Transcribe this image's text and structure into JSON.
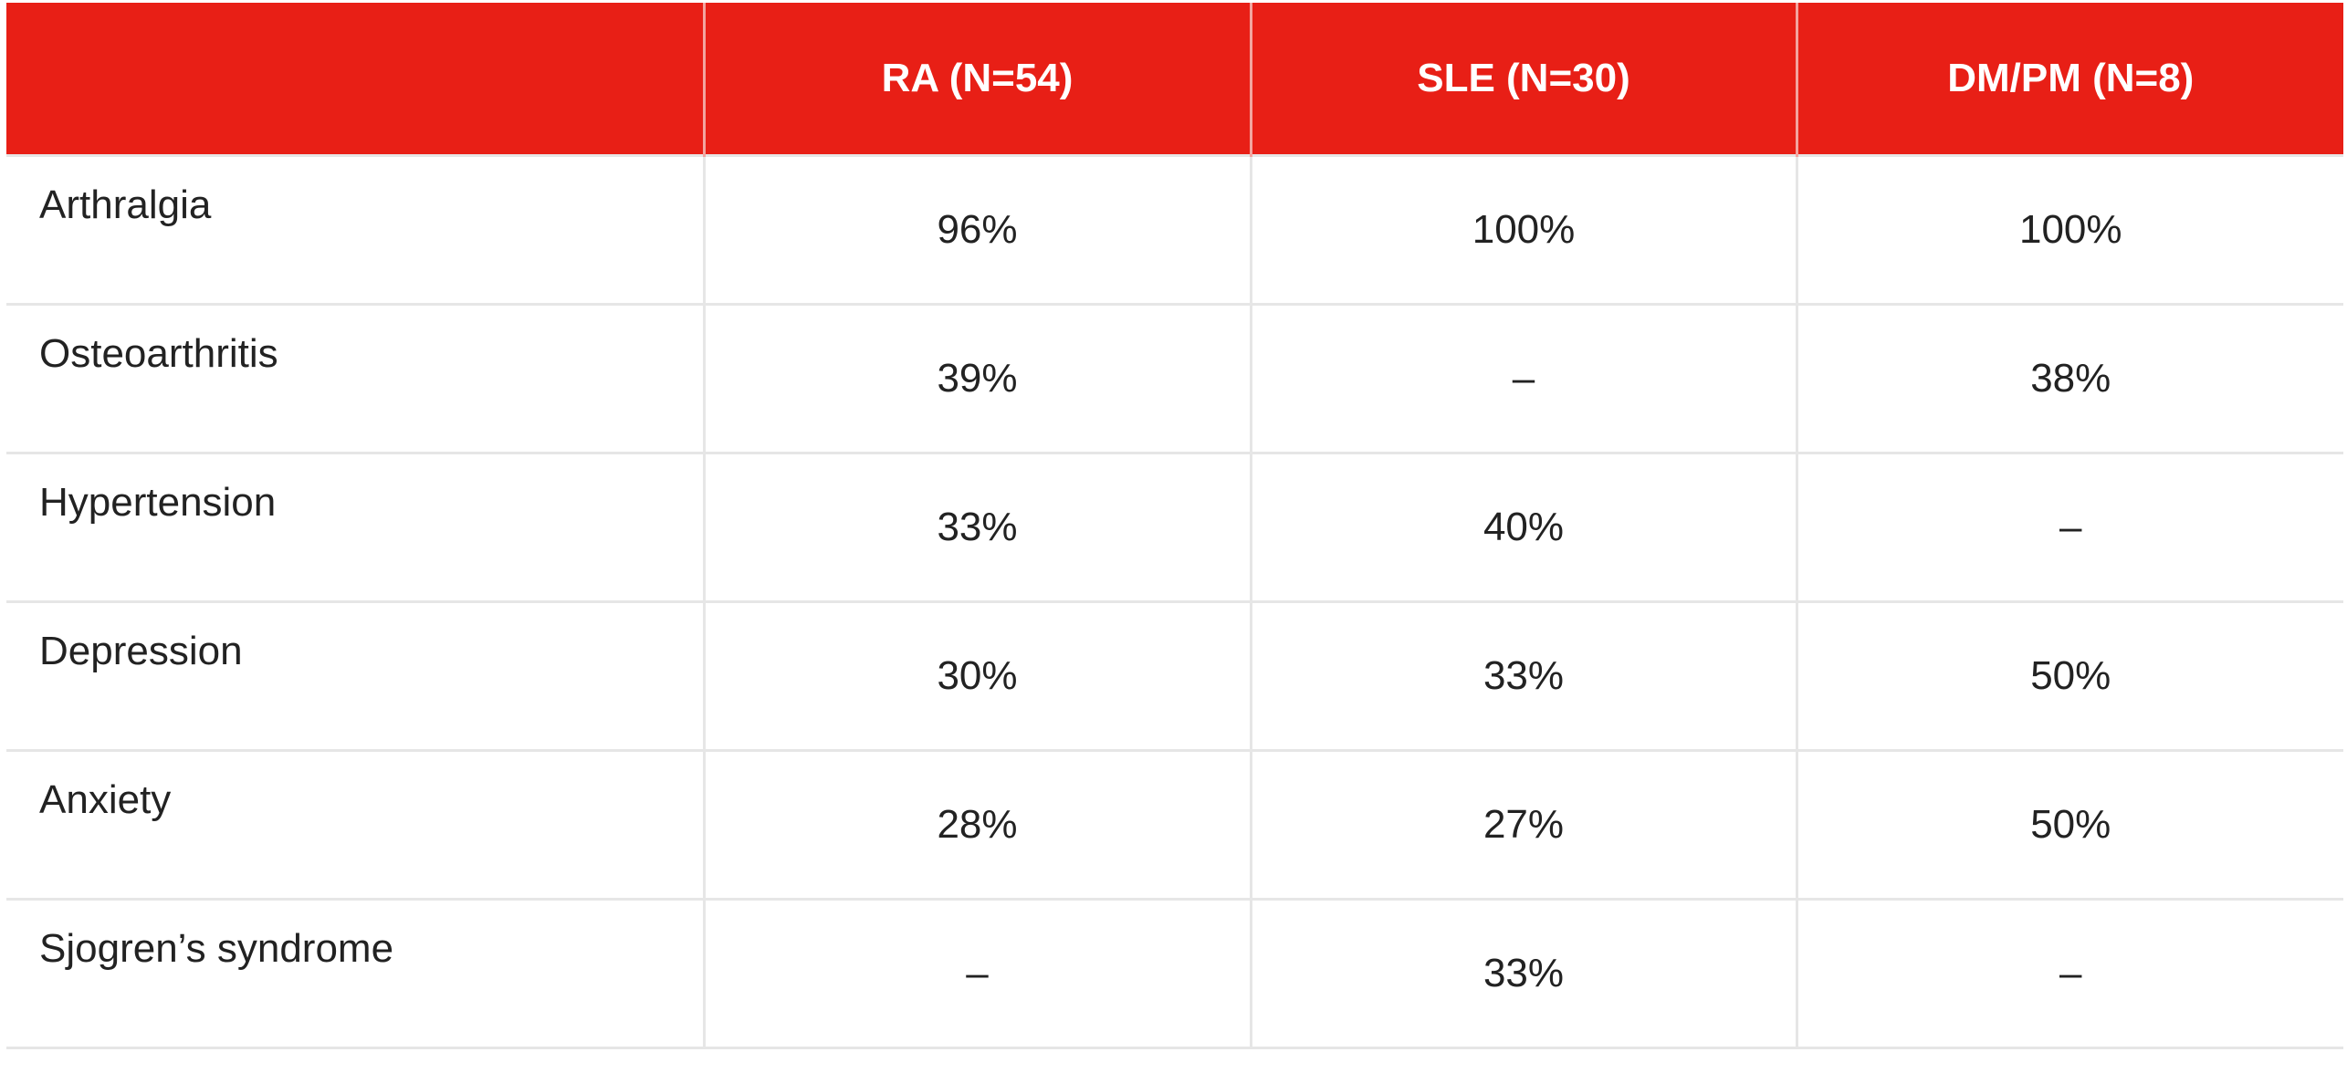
{
  "table": {
    "columns": [
      "",
      "RA (N=54)",
      "SLE (N=30)",
      "DM/PM (N=8)"
    ],
    "rows": [
      {
        "label": "Arthralgia",
        "values": [
          "96%",
          "100%",
          "100%"
        ]
      },
      {
        "label": "Osteoarthritis",
        "values": [
          "39%",
          "–",
          "38%"
        ]
      },
      {
        "label": "Hypertension",
        "values": [
          "33%",
          "40%",
          "–"
        ]
      },
      {
        "label": "Depression",
        "values": [
          "30%",
          "33%",
          "50%"
        ]
      },
      {
        "label": "Anxiety",
        "values": [
          "28%",
          "27%",
          "50%"
        ]
      },
      {
        "label": "Sjogren’s syndrome",
        "values": [
          "–",
          "33%",
          "–"
        ]
      }
    ]
  },
  "colors": {
    "header_background": "#e81f16",
    "header_text": "#ffffff",
    "grid_lines": "#e6e6e6",
    "body_text": "#222222"
  }
}
